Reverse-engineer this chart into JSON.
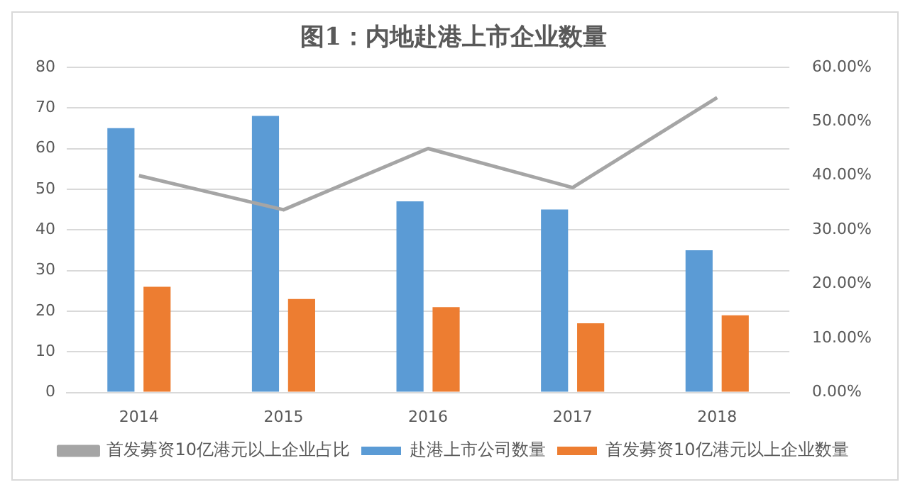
{
  "chart_data": {
    "type": "bar",
    "title": "图1：内地赴港上市企业数量",
    "categories": [
      "2014",
      "2015",
      "2016",
      "2017",
      "2018"
    ],
    "series": [
      {
        "name": "赴港上市公司数量",
        "color": "#5b9bd5",
        "values": [
          65,
          68,
          47,
          45,
          35
        ]
      },
      {
        "name": "首发募资10亿港元以上企业数量",
        "color": "#ed7d31",
        "values": [
          26,
          23,
          21,
          17,
          19
        ]
      },
      {
        "name": "首发募资10亿港元以上企业占比",
        "type": "line",
        "axis": "y2",
        "color": "#a5a5a5",
        "values": [
          40,
          33.7,
          45,
          37.8,
          54.4
        ]
      }
    ],
    "ylim": [
      0,
      80
    ],
    "yticks": [
      0,
      10,
      20,
      30,
      40,
      50,
      60,
      70,
      80
    ],
    "y2lim": [
      0,
      60
    ],
    "y2ticks": [
      {
        "value": 0,
        "label": "0.00%"
      },
      {
        "value": 10,
        "label": "10.00%"
      },
      {
        "value": 20,
        "label": "20.00%"
      },
      {
        "value": 30,
        "label": "30.00%"
      },
      {
        "value": 40,
        "label": "40.00%"
      },
      {
        "value": 50,
        "label": "50.00%"
      },
      {
        "value": 60,
        "label": "60.00%"
      }
    ],
    "grid": "y",
    "legend": "bottom",
    "marker": "none"
  }
}
